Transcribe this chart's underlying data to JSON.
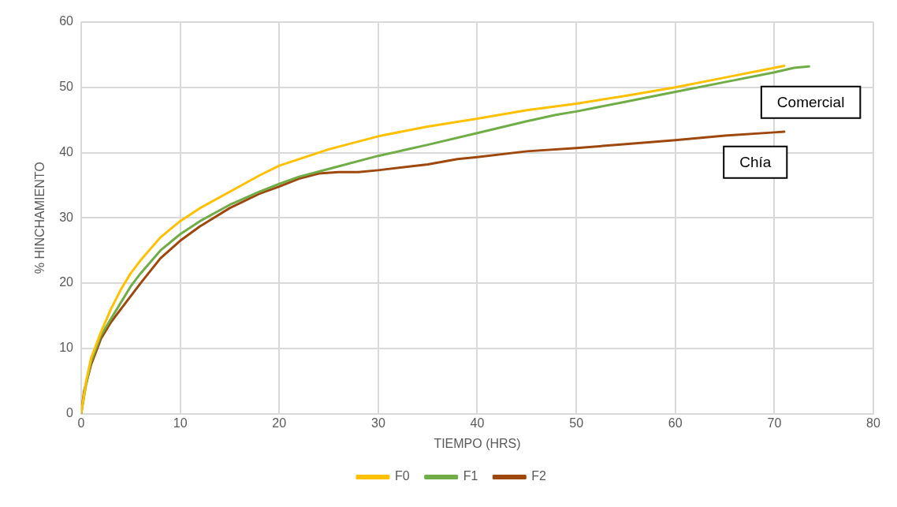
{
  "chart_data": {
    "type": "line",
    "xlabel": "TIEMPO (HRS)",
    "ylabel": "% HINCHAMIENTO",
    "xlim": [
      0,
      80
    ],
    "xticks": [
      0,
      10,
      20,
      30,
      40,
      50,
      60,
      70,
      80
    ],
    "ylim": [
      0,
      60
    ],
    "yticks": [
      0,
      10,
      20,
      30,
      40,
      50,
      60
    ],
    "grid": true,
    "legend": "bottom",
    "marker": "none",
    "line_style": "solid",
    "series": [
      {
        "name": "F0",
        "color": "#ffc000",
        "x": [
          0,
          0.5,
          1,
          2,
          3,
          4,
          5,
          6,
          8,
          10,
          12,
          15,
          18,
          20,
          25,
          30,
          35,
          40,
          45,
          50,
          55,
          60,
          65,
          70,
          71
        ],
        "values": [
          0,
          5,
          8.5,
          12.5,
          16,
          19,
          21.5,
          23.5,
          27,
          29.5,
          31.5,
          34,
          36.5,
          38,
          40.5,
          42.5,
          44,
          45.2,
          46.5,
          47.5,
          48.7,
          50,
          51.5,
          53,
          53.3
        ]
      },
      {
        "name": "F1",
        "color": "#70ad47",
        "x": [
          0,
          0.5,
          1,
          2,
          3,
          4,
          5,
          6,
          8,
          10,
          12,
          15,
          18,
          20,
          22,
          25,
          30,
          35,
          40,
          45,
          48,
          50,
          55,
          60,
          65,
          70,
          72,
          73.5
        ],
        "values": [
          0,
          4.5,
          8,
          12,
          14.5,
          17,
          19.5,
          21.5,
          25,
          27.5,
          29.5,
          32,
          34,
          35.2,
          36.3,
          37.5,
          39.5,
          41.2,
          43,
          44.8,
          45.8,
          46.3,
          47.8,
          49.3,
          50.8,
          52.3,
          53,
          53.2
        ]
      },
      {
        "name": "F2",
        "color": "#9e480e",
        "x": [
          0,
          0.3,
          1,
          2,
          3,
          4,
          5,
          6,
          8,
          10,
          12,
          15,
          18,
          20,
          22,
          24,
          26,
          28,
          30,
          35,
          38,
          40,
          45,
          50,
          55,
          60,
          65,
          70,
          71
        ],
        "values": [
          0,
          3.5,
          7.5,
          11.5,
          14,
          16,
          18,
          20,
          23.8,
          26.5,
          28.7,
          31.5,
          33.7,
          34.8,
          36,
          36.8,
          37,
          37,
          37.3,
          38.2,
          39,
          39.3,
          40.2,
          40.7,
          41.3,
          41.9,
          42.6,
          43.1,
          43.2
        ]
      }
    ],
    "annotations": [
      "Comercial",
      "Chía"
    ]
  }
}
